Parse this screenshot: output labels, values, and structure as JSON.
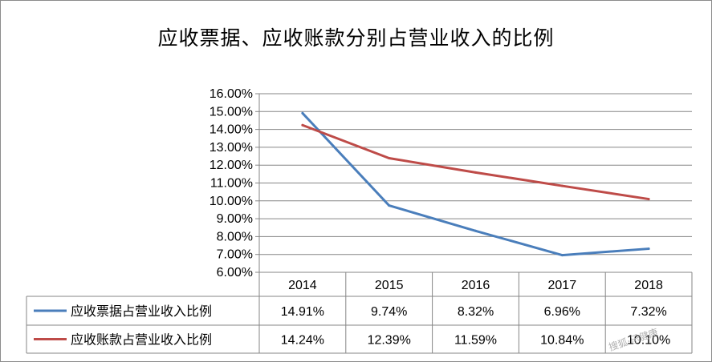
{
  "chart_data": {
    "type": "line",
    "title": "应收票据、应收账款分别占营业收入的比例",
    "categories": [
      "2014",
      "2015",
      "2016",
      "2017",
      "2018"
    ],
    "ylim": [
      6,
      16
    ],
    "ytick_step": 1,
    "ytick_labels": [
      "16.00%",
      "15.00%",
      "14.00%",
      "13.00%",
      "12.00%",
      "11.00%",
      "10.00%",
      "9.00%",
      "8.00%",
      "7.00%",
      "6.00%"
    ],
    "grid": true,
    "legend_position": "bottom data table",
    "series": [
      {
        "name": "应收票据占营业收入比例",
        "color": "#4a7ebb",
        "values": [
          14.91,
          9.74,
          8.32,
          6.96,
          7.32
        ],
        "labels": [
          "14.91%",
          "9.74%",
          "8.32%",
          "6.96%",
          "7.32%"
        ]
      },
      {
        "name": "应收账款占营业收入比例",
        "color": "#be4b48",
        "values": [
          14.24,
          12.39,
          11.59,
          10.84,
          10.1
        ],
        "labels": [
          "14.24%",
          "12.39%",
          "11.59%",
          "10.84%",
          "10.10%"
        ]
      }
    ]
  },
  "watermark": "搜狐·乐健康"
}
